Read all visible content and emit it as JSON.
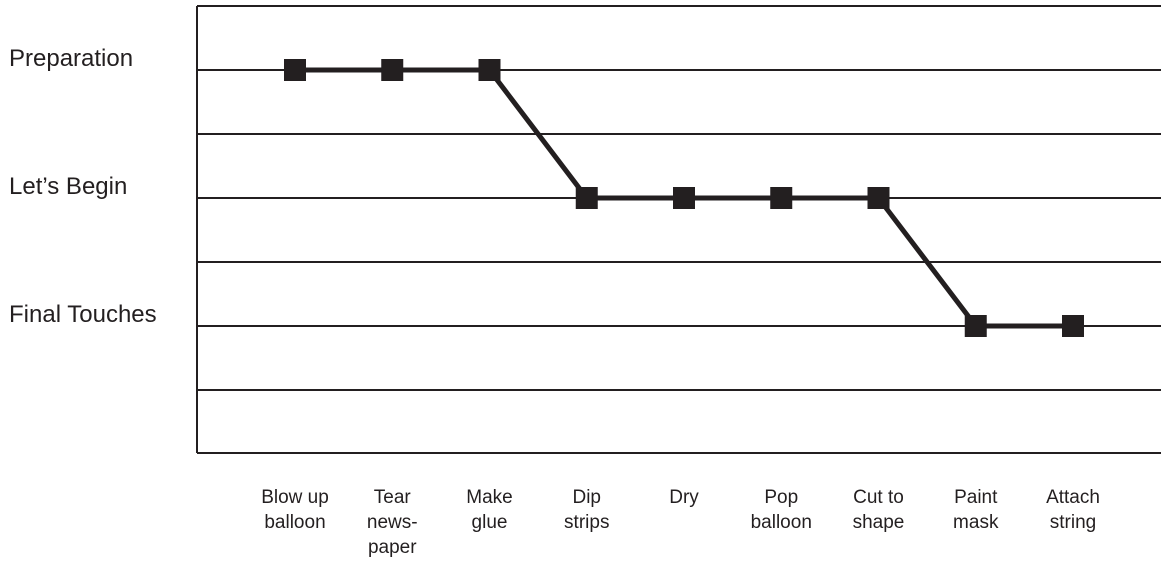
{
  "chart_data": {
    "type": "line",
    "title": "",
    "xlabel": "",
    "ylabel": "",
    "grid": true,
    "y_categories": [
      "Preparation",
      "Let’s Begin",
      "Final Touches"
    ],
    "categories": [
      [
        "Blow up",
        "balloon"
      ],
      [
        "Tear",
        "news-",
        "paper"
      ],
      [
        "Make",
        "glue"
      ],
      [
        "Dip",
        "strips"
      ],
      [
        "Dry"
      ],
      [
        "Pop",
        "balloon"
      ],
      [
        "Cut to",
        "shape"
      ],
      [
        "Paint",
        "mask"
      ],
      [
        "Attach",
        "string"
      ]
    ],
    "series": [
      {
        "values": [
          "Preparation",
          "Preparation",
          "Preparation",
          "Let’s Begin",
          "Let’s Begin",
          "Let’s Begin",
          "Let’s Begin",
          "Final Touches",
          "Final Touches"
        ]
      }
    ],
    "colors": {
      "ink": "#231f20",
      "background": "#ffffff"
    }
  }
}
